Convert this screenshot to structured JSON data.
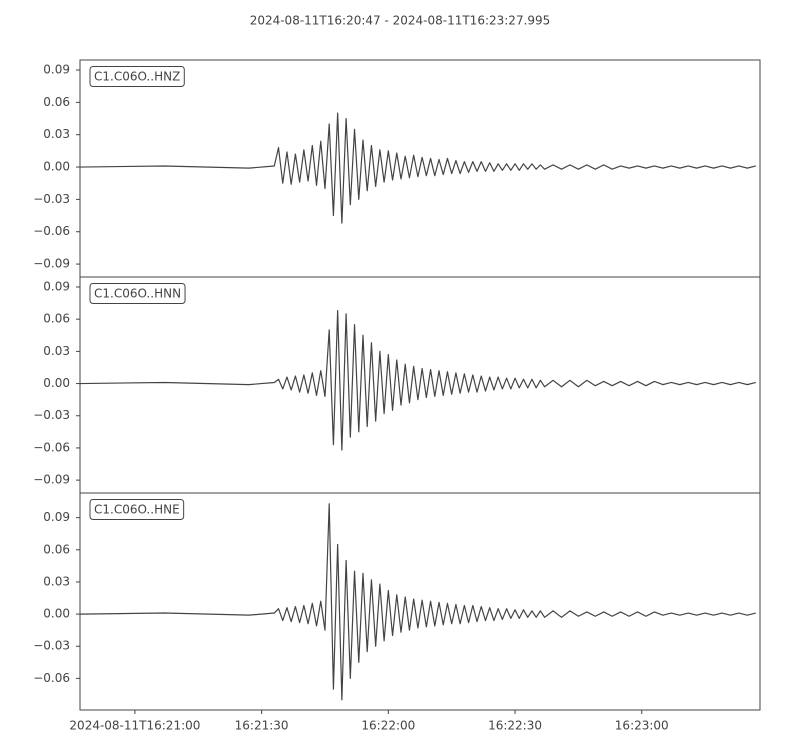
{
  "title": "2024-08-11T16:20:47  -  2024-08-11T16:23:27.995",
  "chart_data": [
    {
      "type": "line",
      "label": "C1.C06O..HNZ",
      "color": "#444444",
      "xlim": [
        0,
        160.995
      ],
      "ylim": [
        -0.102,
        0.0993
      ],
      "yticks": [
        0.09,
        0.06,
        0.03,
        {
          "value": 0,
          "label": "0.00"
        },
        {
          "value": -0.03,
          "label": "−0.03"
        },
        {
          "value": -0.06,
          "label": "−0.06"
        },
        {
          "value": -0.09,
          "label": "−0.09"
        }
      ],
      "x": [
        0,
        20,
        40,
        46,
        47,
        48,
        49,
        50,
        51,
        52,
        53,
        54,
        55,
        56,
        57,
        58,
        59,
        60,
        61,
        62,
        63,
        64,
        65,
        66,
        67,
        68,
        69,
        70,
        71,
        72,
        73,
        74,
        75,
        76,
        77,
        78,
        79,
        80,
        81,
        82,
        83,
        84,
        85,
        86,
        87,
        88,
        89,
        90,
        91,
        92,
        93,
        94,
        95,
        96,
        97,
        98,
        99,
        100,
        101,
        102,
        103,
        104,
        105,
        106,
        107,
        108,
        109,
        110,
        112,
        114,
        116,
        118,
        120,
        122,
        124,
        126,
        128,
        130,
        132,
        134,
        136,
        138,
        140,
        142,
        144,
        146,
        148,
        150,
        152,
        154,
        156,
        158,
        160
      ],
      "values": [
        0,
        0.001,
        -0.001,
        0.001,
        0.018,
        -0.015,
        0.014,
        -0.016,
        0.012,
        -0.014,
        0.016,
        -0.013,
        0.02,
        -0.017,
        0.024,
        -0.02,
        0.04,
        -0.045,
        0.05,
        -0.052,
        0.045,
        -0.035,
        0.035,
        -0.03,
        0.025,
        -0.022,
        0.02,
        -0.018,
        0.016,
        -0.014,
        0.015,
        -0.012,
        0.013,
        -0.011,
        0.01,
        -0.01,
        0.011,
        -0.009,
        0.009,
        -0.008,
        0.008,
        -0.008,
        0.007,
        -0.007,
        0.008,
        -0.006,
        0.006,
        -0.006,
        0.005,
        -0.005,
        0.005,
        -0.004,
        0.005,
        -0.004,
        0.004,
        -0.004,
        0.003,
        -0.003,
        0.003,
        -0.003,
        0.003,
        -0.003,
        0.003,
        -0.002,
        0.003,
        -0.002,
        0.002,
        -0.002,
        0.002,
        -0.002,
        0.002,
        -0.002,
        0.002,
        -0.002,
        0.002,
        -0.002,
        0.001,
        -0.001,
        0.001,
        -0.001,
        0.001,
        -0.001,
        0.001,
        -0.001,
        0.001,
        -0.001,
        0.001,
        -0.001,
        0.001,
        -0.001,
        0.001,
        -0.001,
        0.001
      ]
    },
    {
      "type": "line",
      "label": "C1.C06O..HNN",
      "color": "#444444",
      "xlim": [
        0,
        160.995
      ],
      "ylim": [
        -0.102,
        0.0993
      ],
      "yticks": [
        0.09,
        0.06,
        0.03,
        {
          "value": 0,
          "label": "0.00"
        },
        {
          "value": -0.03,
          "label": "−0.03"
        },
        {
          "value": -0.06,
          "label": "−0.06"
        },
        {
          "value": -0.09,
          "label": "−0.09"
        }
      ],
      "x": [
        0,
        20,
        40,
        46,
        47,
        48,
        49,
        50,
        51,
        52,
        53,
        54,
        55,
        56,
        57,
        58,
        59,
        60,
        61,
        62,
        63,
        64,
        65,
        66,
        67,
        68,
        69,
        70,
        71,
        72,
        73,
        74,
        75,
        76,
        77,
        78,
        79,
        80,
        81,
        82,
        83,
        84,
        85,
        86,
        87,
        88,
        89,
        90,
        91,
        92,
        93,
        94,
        95,
        96,
        97,
        98,
        99,
        100,
        101,
        102,
        103,
        104,
        105,
        106,
        107,
        108,
        109,
        110,
        112,
        114,
        116,
        118,
        120,
        122,
        124,
        126,
        128,
        130,
        132,
        134,
        136,
        138,
        140,
        142,
        144,
        146,
        148,
        150,
        152,
        154,
        156,
        158,
        160
      ],
      "values": [
        0,
        0.001,
        -0.001,
        0.001,
        0.004,
        -0.005,
        0.006,
        -0.006,
        0.007,
        -0.008,
        0.008,
        -0.009,
        0.01,
        -0.011,
        0.012,
        -0.012,
        0.05,
        -0.057,
        0.068,
        -0.062,
        0.065,
        -0.05,
        0.055,
        -0.045,
        0.045,
        -0.04,
        0.038,
        -0.035,
        0.03,
        -0.028,
        0.027,
        -0.025,
        0.022,
        -0.02,
        0.018,
        -0.018,
        0.016,
        -0.015,
        0.014,
        -0.013,
        0.013,
        -0.012,
        0.012,
        -0.011,
        0.011,
        -0.01,
        0.01,
        -0.009,
        0.009,
        -0.008,
        0.008,
        -0.008,
        0.007,
        -0.007,
        0.006,
        -0.006,
        0.006,
        -0.005,
        0.005,
        -0.005,
        0.005,
        -0.004,
        0.004,
        -0.004,
        0.004,
        -0.004,
        0.003,
        -0.003,
        0.003,
        -0.003,
        0.003,
        -0.003,
        0.003,
        -0.002,
        0.002,
        -0.002,
        0.002,
        -0.002,
        0.002,
        -0.002,
        0.002,
        -0.001,
        0.001,
        -0.001,
        0.001,
        -0.001,
        0.001,
        -0.001,
        0.001,
        -0.001,
        0.001,
        -0.001,
        0.001
      ]
    },
    {
      "type": "line",
      "label": "C1.C06O..HNE",
      "color": "#444444",
      "xlim": [
        0,
        160.995
      ],
      "ylim": [
        -0.0895,
        0.113
      ],
      "yticks": [
        0.09,
        0.06,
        0.03,
        {
          "value": 0,
          "label": "0.00"
        },
        {
          "value": -0.03,
          "label": "−0.03"
        },
        {
          "value": -0.06,
          "label": "−0.06"
        }
      ],
      "xticks": [
        {
          "value": 13,
          "label": "2024-08-11T16:21:00"
        },
        {
          "value": 43,
          "label": "16:21:30"
        },
        {
          "value": 73,
          "label": "16:22:00"
        },
        {
          "value": 103,
          "label": "16:22:30"
        },
        {
          "value": 133,
          "label": "16:23:00"
        }
      ],
      "x": [
        0,
        20,
        40,
        46,
        47,
        48,
        49,
        50,
        51,
        52,
        53,
        54,
        55,
        56,
        57,
        58,
        59,
        60,
        61,
        62,
        63,
        64,
        65,
        66,
        67,
        68,
        69,
        70,
        71,
        72,
        73,
        74,
        75,
        76,
        77,
        78,
        79,
        80,
        81,
        82,
        83,
        84,
        85,
        86,
        87,
        88,
        89,
        90,
        91,
        92,
        93,
        94,
        95,
        96,
        97,
        98,
        99,
        100,
        101,
        102,
        103,
        104,
        105,
        106,
        107,
        108,
        109,
        110,
        112,
        114,
        116,
        118,
        120,
        122,
        124,
        126,
        128,
        130,
        132,
        134,
        136,
        138,
        140,
        142,
        144,
        146,
        148,
        150,
        152,
        154,
        156,
        158,
        160
      ],
      "values": [
        0,
        0.001,
        -0.001,
        0.001,
        0.005,
        -0.006,
        0.006,
        -0.007,
        0.007,
        -0.008,
        0.008,
        -0.009,
        0.01,
        -0.011,
        0.012,
        -0.015,
        0.103,
        -0.07,
        0.065,
        -0.08,
        0.05,
        -0.06,
        0.04,
        -0.045,
        0.038,
        -0.035,
        0.032,
        -0.03,
        0.028,
        -0.025,
        0.022,
        -0.02,
        0.018,
        -0.017,
        0.016,
        -0.015,
        0.014,
        -0.013,
        0.013,
        -0.012,
        0.012,
        -0.011,
        0.011,
        -0.01,
        0.01,
        -0.009,
        0.009,
        -0.009,
        0.008,
        -0.008,
        0.008,
        -0.007,
        0.007,
        -0.006,
        0.006,
        -0.006,
        0.005,
        -0.005,
        0.005,
        -0.004,
        0.004,
        -0.004,
        0.004,
        -0.003,
        0.003,
        -0.003,
        0.003,
        -0.003,
        0.003,
        -0.003,
        0.003,
        -0.002,
        0.002,
        -0.002,
        0.002,
        -0.002,
        0.002,
        -0.002,
        0.002,
        -0.002,
        0.002,
        -0.001,
        0.001,
        -0.001,
        0.001,
        -0.001,
        0.001,
        -0.001,
        0.001,
        -0.001,
        0.001,
        -0.001,
        0.001
      ]
    }
  ]
}
